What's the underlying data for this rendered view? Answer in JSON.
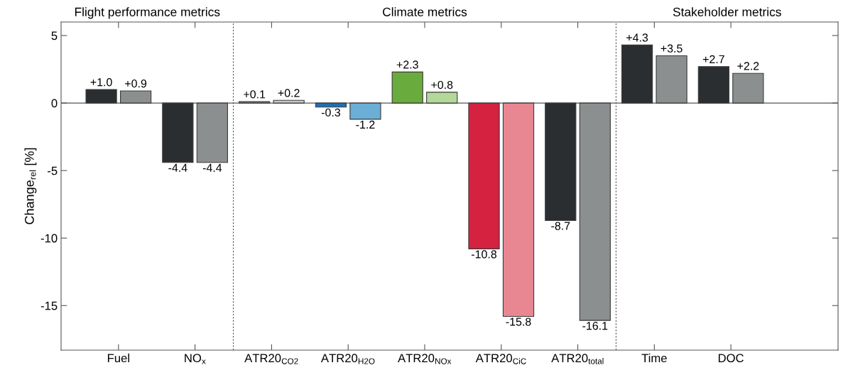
{
  "chart_data": {
    "type": "bar",
    "ylabel": "Change$_{rel}$ [%]",
    "categories": [
      "Fuel",
      "NO$_{x}$",
      "ATR20$_{CO2}$",
      "ATR20$_{H2O}$",
      "ATR20$_{NOx}$",
      "ATR20$_{CiC}$",
      "ATR20$_{total}$",
      "Time",
      "DOC"
    ],
    "series": [
      {
        "values": [
          1.0,
          -4.4,
          0.1,
          -0.3,
          2.3,
          -10.8,
          -8.7,
          4.3,
          2.7
        ],
        "value_labels": [
          "+1.0",
          "-4.4",
          "+0.1",
          "-0.3",
          "+2.3",
          "-10.8",
          "-8.7",
          "+4.3",
          "+2.7"
        ],
        "colors": [
          "#2b2e30",
          "#2b2e30",
          "#7f8283",
          "#1f6fb5",
          "#6aab3e",
          "#d42240",
          "#2b2e30",
          "#2b2e30",
          "#2b2e30"
        ]
      },
      {
        "values": [
          0.9,
          -4.4,
          0.2,
          -1.2,
          0.8,
          -15.8,
          -16.1,
          3.5,
          2.2
        ],
        "value_labels": [
          "+0.9",
          "-4.4",
          "+0.2",
          "-1.2",
          "+0.8",
          "-15.8",
          "-16.1",
          "+3.5",
          "+2.2"
        ],
        "colors": [
          "#8c8f8f",
          "#8c8f8f",
          "#c8c9c9",
          "#6baed6",
          "#b3d89a",
          "#e88792",
          "#8c8f8f",
          "#8c8f8f",
          "#8c8f8f"
        ]
      }
    ],
    "ylim": [
      -18.3,
      6
    ],
    "yticks": [
      5,
      0,
      -5,
      -10,
      -15
    ],
    "annotations": [
      "Flight performance metrics",
      "Climate metrics",
      "Stakeholder metrics"
    ],
    "grid": false,
    "legend": false
  }
}
